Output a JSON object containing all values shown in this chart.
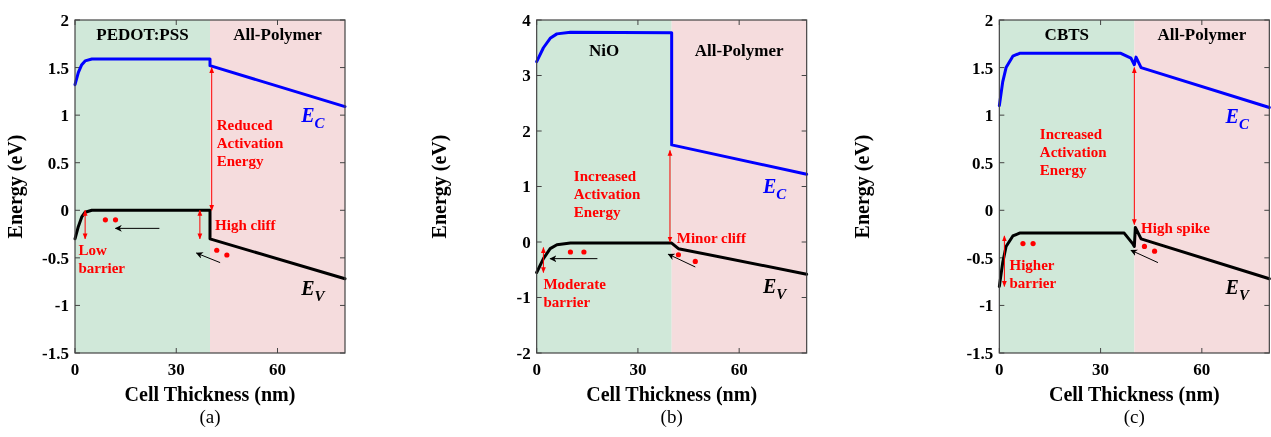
{
  "chart_data": [
    {
      "type": "line",
      "xlabel": "Cell Thickness (nm)",
      "ylabel": "Energy (eV)",
      "xlim": [
        0,
        80
      ],
      "ylim": [
        -1.5,
        2
      ],
      "xticks": [
        0,
        30,
        60
      ],
      "yticks": [
        -1.5,
        -1,
        -0.5,
        0,
        0.5,
        1,
        1.5,
        2
      ],
      "bands": [
        {
          "axis": "x",
          "from": 0,
          "to": 40,
          "label": "PEDOT:PSS",
          "color": "#d0e8d9"
        },
        {
          "axis": "x",
          "from": 40,
          "to": 80,
          "label": "All-Polymer",
          "color": "#f5dcdd"
        }
      ],
      "series": [
        {
          "name": "E$_{C}$",
          "color": "#0000ff",
          "x": [
            0,
            1,
            2,
            3,
            5,
            40,
            40,
            80
          ],
          "values": [
            1.32,
            1.45,
            1.53,
            1.57,
            1.59,
            1.59,
            1.52,
            1.09
          ]
        },
        {
          "name": "E$_{V}$",
          "color": "#000000",
          "x": [
            0,
            1,
            2,
            3,
            5,
            40,
            40,
            80
          ],
          "values": [
            -0.3,
            -0.17,
            -0.07,
            -0.02,
            0,
            0,
            -0.3,
            -0.72
          ]
        }
      ],
      "annotations": [
        "Reduced\nActivation\nEnergy",
        "High cliff",
        "Low\nbarrier",
        "(a)"
      ]
    },
    {
      "type": "line",
      "xlabel": "Cell Thickness (nm)",
      "ylabel": "Energy (eV)",
      "xlim": [
        0,
        80
      ],
      "ylim": [
        -2,
        4
      ],
      "xticks": [
        0,
        30,
        60
      ],
      "yticks": [
        -2,
        -1,
        0,
        1,
        2,
        3,
        4
      ],
      "bands": [
        {
          "axis": "x",
          "from": 0,
          "to": 40,
          "label": "NiO",
          "color": "#d0e8d9"
        },
        {
          "axis": "x",
          "from": 40,
          "to": 80,
          "label": "All-Polymer",
          "color": "#f5dcdd"
        }
      ],
      "series": [
        {
          "name": "E$_{C}$",
          "color": "#0000ff",
          "x": [
            0,
            2,
            4,
            6,
            10,
            40,
            40,
            80
          ],
          "values": [
            3.25,
            3.5,
            3.67,
            3.75,
            3.78,
            3.77,
            1.75,
            1.22
          ]
        },
        {
          "name": "E$_{V}$",
          "color": "#000000",
          "x": [
            0,
            2,
            4,
            6,
            10,
            40,
            42,
            80
          ],
          "values": [
            -0.55,
            -0.3,
            -0.12,
            -0.05,
            -0.02,
            -0.02,
            -0.12,
            -0.58
          ]
        }
      ],
      "annotations": [
        "Increased\nActivation\nEnergy",
        "Minor cliff",
        "Moderate\nbarrier",
        "(b)"
      ]
    },
    {
      "type": "line",
      "xlabel": "Cell Thickness (nm)",
      "ylabel": "Energy (eV)",
      "xlim": [
        0,
        80
      ],
      "ylim": [
        -1.5,
        2
      ],
      "xticks": [
        0,
        30,
        60
      ],
      "yticks": [
        -1.5,
        -1,
        -0.5,
        0,
        0.5,
        1,
        1.5,
        2
      ],
      "bands": [
        {
          "axis": "x",
          "from": 0,
          "to": 40,
          "label": "CBTS",
          "color": "#d0e8d9"
        },
        {
          "axis": "x",
          "from": 40,
          "to": 80,
          "label": "All-Polymer",
          "color": "#f5dcdd"
        }
      ],
      "series": [
        {
          "name": "E$_{C}$",
          "color": "#0000ff",
          "x": [
            0,
            1,
            2,
            4,
            6,
            36,
            39,
            40,
            40.5,
            42,
            80
          ],
          "values": [
            1.1,
            1.35,
            1.5,
            1.62,
            1.65,
            1.65,
            1.6,
            1.53,
            1.61,
            1.5,
            1.08
          ]
        },
        {
          "name": "E$_{V}$",
          "color": "#000000",
          "x": [
            0,
            1,
            2,
            4,
            6,
            37,
            39.5,
            40,
            40.3,
            42,
            80
          ],
          "values": [
            -0.8,
            -0.55,
            -0.38,
            -0.27,
            -0.24,
            -0.24,
            -0.35,
            -0.38,
            -0.18,
            -0.3,
            -0.72
          ]
        }
      ],
      "annotations": [
        "Increased\nActivation\nEnergy",
        "High spike",
        "Higher\nbarrier",
        "(c)"
      ]
    }
  ]
}
